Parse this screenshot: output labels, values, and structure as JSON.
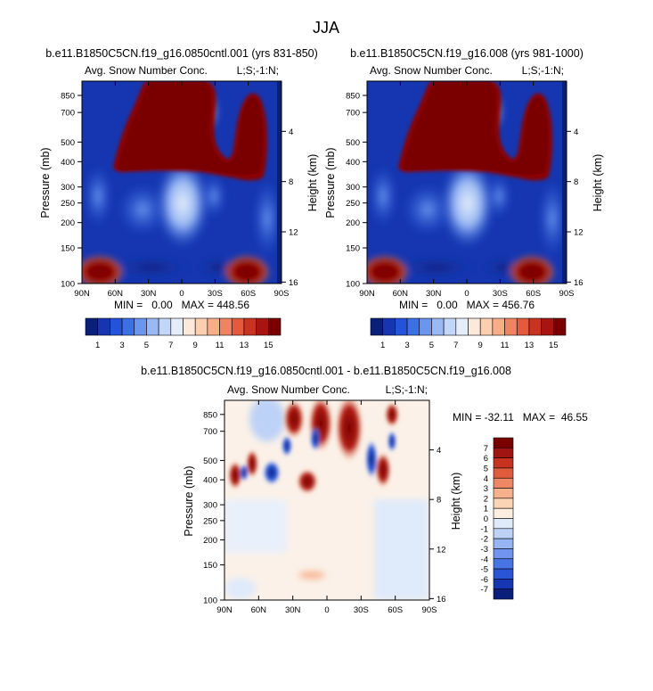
{
  "figure_title": "JJA",
  "colors": {
    "abs_scale": [
      "#0a1f7a",
      "#1536b0",
      "#2452d8",
      "#3d70e6",
      "#6b95ee",
      "#9ab8f4",
      "#c3d6f8",
      "#e4eefb",
      "#fde9d9",
      "#fbcfb0",
      "#f7ae88",
      "#ef8560",
      "#e35a3c",
      "#cc3220",
      "#a81510",
      "#7a0000"
    ],
    "diff_scale": [
      "#0a1f7a",
      "#1736b3",
      "#2a55d8",
      "#4775e6",
      "#6f95ee",
      "#97b5f3",
      "#bdd2f7",
      "#dfeafb",
      "#fdeee0",
      "#fbd4b5",
      "#f7b08c",
      "#ee8764",
      "#e05a3c",
      "#c93220",
      "#a11410",
      "#7a0000"
    ]
  },
  "chart_data": [
    {
      "type": "heatmap",
      "title": "b.e11.B1850C5CN.f19_g16.0850cntl.001 (yrs 831-850)",
      "left_label": "Avg. Snow Number Conc.",
      "right_label": "L;S;-1:N;",
      "ylabel": "Pressure (mb)",
      "y2label": "Height (km)",
      "x_ticks": [
        "90N",
        "60N",
        "30N",
        "0",
        "30S",
        "60S",
        "90S"
      ],
      "y_ticks": [
        "100",
        "150",
        "200",
        "250",
        "300",
        "400",
        "500",
        "700",
        "850"
      ],
      "y2_ticks": [
        "16",
        "12",
        "8",
        "4"
      ],
      "ylim": [
        1000,
        100
      ],
      "stats": "MIN =   0.00   MAX = 448.56",
      "colorbar_labels": [
        "1",
        "3",
        "5",
        "7",
        "9",
        "11",
        "13",
        "15"
      ],
      "colorbar_range": [
        0,
        16
      ]
    },
    {
      "type": "heatmap",
      "title": "b.e11.B1850C5CN.f19_g16.008 (yrs 981-1000)",
      "left_label": "Avg. Snow Number Conc.",
      "right_label": "L;S;-1:N;",
      "ylabel": "Pressure (mb)",
      "y2label": "Height (km)",
      "x_ticks": [
        "90N",
        "60N",
        "30N",
        "0",
        "30S",
        "60S",
        "90S"
      ],
      "y_ticks": [
        "100",
        "150",
        "200",
        "250",
        "300",
        "400",
        "500",
        "700",
        "850"
      ],
      "y2_ticks": [
        "16",
        "12",
        "8",
        "4"
      ],
      "ylim": [
        1000,
        100
      ],
      "stats": "MIN =   0.00   MAX = 456.76",
      "colorbar_labels": [
        "1",
        "3",
        "5",
        "7",
        "9",
        "11",
        "13",
        "15"
      ],
      "colorbar_range": [
        0,
        16
      ]
    },
    {
      "type": "heatmap",
      "title": "b.e11.B1850C5CN.f19_g16.0850cntl.001 - b.e11.B1850C5CN.f19_g16.008",
      "left_label": "Avg. Snow Number Conc.",
      "right_label": "L;S;-1:N;",
      "ylabel": "Pressure (mb)",
      "y2label": "Height (km)",
      "x_ticks": [
        "90N",
        "60N",
        "30N",
        "0",
        "30S",
        "60S",
        "90S"
      ],
      "y_ticks": [
        "100",
        "150",
        "200",
        "250",
        "300",
        "400",
        "500",
        "700",
        "850"
      ],
      "y2_ticks": [
        "16",
        "12",
        "8",
        "4"
      ],
      "ylim": [
        1000,
        100
      ],
      "stats": "MIN = -32.11   MAX =  46.55",
      "colorbar_labels": [
        "7",
        "6",
        "5",
        "4",
        "3",
        "2",
        "1",
        "0",
        "-1",
        "-2",
        "-3",
        "-4",
        "-5",
        "-6",
        "-7"
      ],
      "colorbar_range": [
        -8,
        8
      ]
    }
  ]
}
